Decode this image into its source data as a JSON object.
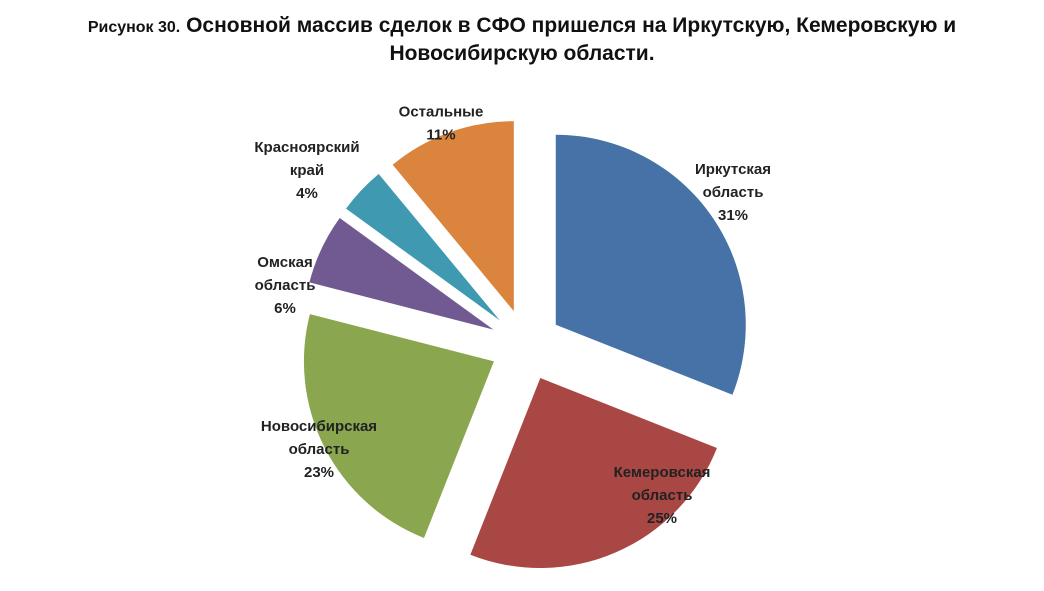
{
  "figure": {
    "prefix": "Рисунок 30.",
    "title_line1": "Основной массив сделок в СФО пришелся на Иркутскую, Кемеровскую и",
    "title_line2": "Новосибирскую области."
  },
  "chart_data": {
    "type": "pie",
    "exploded": true,
    "start_angle_deg": 0,
    "direction": "clockwise",
    "title": "Основной массив сделок в СФО пришелся на Иркутскую, Кемеровскую и Новосибирскую области.",
    "units": "%",
    "slices": [
      {
        "label_lines": [
          "Иркутская",
          "область"
        ],
        "value": 31,
        "display": "31%",
        "color": "#4672A8"
      },
      {
        "label_lines": [
          "Кемеровская",
          "область"
        ],
        "value": 25,
        "display": "25%",
        "color": "#A94744"
      },
      {
        "label_lines": [
          "Новосибирская",
          "область"
        ],
        "value": 23,
        "display": "23%",
        "color": "#8AA64F"
      },
      {
        "label_lines": [
          "Омская",
          "область"
        ],
        "value": 6,
        "display": "6%",
        "color": "#715A91"
      },
      {
        "label_lines": [
          "Красноярский",
          "край"
        ],
        "value": 4,
        "display": "4%",
        "color": "#3F9AB1"
      },
      {
        "label_lines": [
          "Остальные"
        ],
        "value": 11,
        "display": "11%",
        "color": "#DA843E"
      }
    ]
  }
}
